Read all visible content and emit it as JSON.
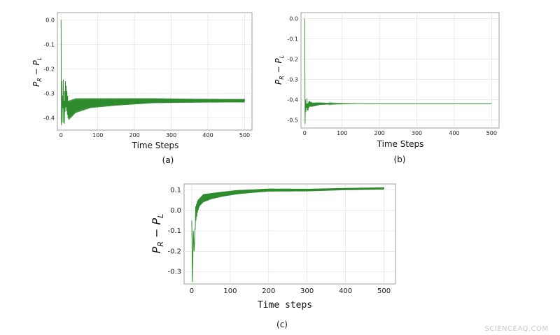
{
  "watermark": "SCIENCEAQ.COM",
  "panels": [
    {
      "caption": "(a)"
    },
    {
      "caption": "(b)"
    },
    {
      "caption": "(c)"
    }
  ],
  "colors": {
    "line": "#2e8b2e",
    "grid": "#dddddd",
    "frame": "#888888"
  },
  "chart_data": [
    {
      "type": "line",
      "panel": "(a)",
      "xlabel": "Time Steps",
      "ylabel": "P_R − P_L",
      "xlim": [
        -10,
        520
      ],
      "ylim": [
        -0.45,
        0.03
      ],
      "xticks": [
        0,
        100,
        200,
        300,
        400,
        500
      ],
      "yticks": [
        0.0,
        -0.1,
        -0.2,
        -0.3,
        -0.4
      ],
      "grid": true,
      "series": [
        {
          "values_description_free": true,
          "x": [
            0,
            1,
            2,
            3,
            5,
            8,
            12,
            20,
            40,
            80,
            150,
            250,
            350,
            450,
            500
          ],
          "y": [
            0.0,
            -0.43,
            -0.25,
            -0.42,
            -0.28,
            -0.39,
            -0.3,
            -0.37,
            -0.35,
            -0.34,
            -0.335,
            -0.33,
            -0.33,
            -0.33,
            -0.33
          ],
          "amplitude": [
            0,
            0,
            0,
            0,
            0.08,
            0.06,
            0.05,
            0.04,
            0.03,
            0.02,
            0.015,
            0.01,
            0.008,
            0.007,
            0.007
          ]
        }
      ]
    },
    {
      "type": "line",
      "panel": "(b)",
      "xlabel": "Time Steps",
      "ylabel": "P_R − P_L",
      "xlim": [
        -10,
        520
      ],
      "ylim": [
        -0.54,
        0.03
      ],
      "xticks": [
        0,
        100,
        200,
        300,
        400,
        500
      ],
      "yticks": [
        0.0,
        -0.1,
        -0.2,
        -0.3,
        -0.4,
        -0.5
      ],
      "grid": true,
      "series": [
        {
          "x": [
            0,
            1,
            2,
            3,
            5,
            8,
            12,
            20,
            40,
            80,
            150,
            250,
            350,
            450,
            500
          ],
          "y": [
            0.0,
            -0.52,
            -0.4,
            -0.46,
            -0.41,
            -0.44,
            -0.42,
            -0.425,
            -0.42,
            -0.42,
            -0.42,
            -0.42,
            -0.42,
            -0.42,
            -0.42
          ],
          "amplitude": [
            0,
            0,
            0,
            0,
            0.03,
            0.02,
            0.015,
            0.01,
            0.006,
            0.002,
            0,
            0,
            0,
            0,
            0
          ]
        }
      ]
    },
    {
      "type": "line",
      "panel": "(c)",
      "xlabel": "Time steps",
      "ylabel": "P_R − P_L",
      "xlim": [
        -20,
        530
      ],
      "ylim": [
        -0.36,
        0.13
      ],
      "xticks": [
        0,
        100,
        200,
        300,
        400,
        500
      ],
      "yticks": [
        0.1,
        0.0,
        -0.1,
        -0.2,
        -0.3
      ],
      "grid": true,
      "series": [
        {
          "x": [
            0,
            2,
            4,
            6,
            10,
            15,
            20,
            30,
            50,
            80,
            120,
            160,
            200,
            300,
            400,
            500
          ],
          "y": [
            -0.05,
            -0.35,
            -0.1,
            -0.2,
            -0.02,
            0.02,
            0.04,
            0.06,
            0.07,
            0.08,
            0.09,
            0.095,
            0.1,
            0.1,
            0.105,
            0.108
          ],
          "amplitude": [
            0,
            0,
            0,
            0,
            0.04,
            0.03,
            0.02,
            0.02,
            0.015,
            0.012,
            0.01,
            0.008,
            0.007,
            0.006,
            0.005,
            0.005
          ]
        }
      ]
    }
  ]
}
